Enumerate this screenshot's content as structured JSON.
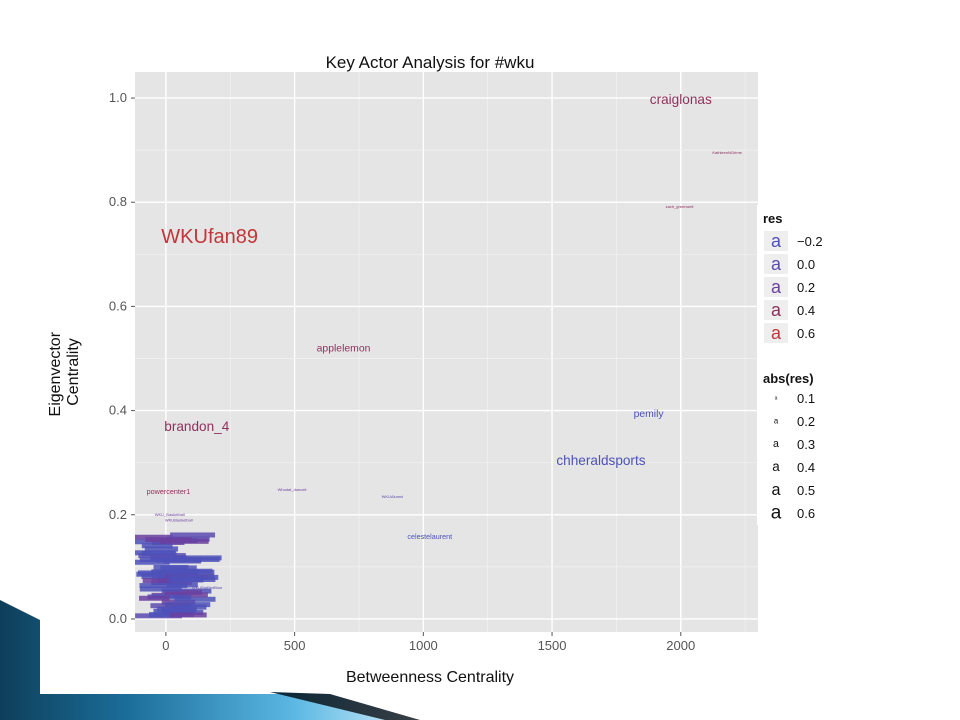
{
  "chart_data": {
    "type": "scatter",
    "title": "Key Actor Analysis for #wku",
    "xlabel": "Betweenness Centrality",
    "ylabel": "Eigenvector\nCentrality",
    "xlim": [
      -120,
      2300
    ],
    "ylim": [
      -0.025,
      1.05
    ],
    "xticks": [
      0,
      500,
      1000,
      1500,
      2000
    ],
    "yticks": [
      0.0,
      0.2,
      0.4,
      0.6,
      0.8,
      1.0
    ],
    "ytick_labels": [
      "0.0",
      "0.2",
      "0.4",
      "0.6",
      "0.8",
      "1.0"
    ],
    "grid": true,
    "points": [
      {
        "label": "craiglonas",
        "x": 2000,
        "y": 0.998,
        "res": 0.4,
        "abs_res": 0.4
      },
      {
        "label": "KathleenNGrime",
        "x": 2180,
        "y": 0.895,
        "res": 0.4,
        "abs_res": 0.1
      },
      {
        "label": "zach_greenwell",
        "x": 1995,
        "y": 0.792,
        "res": 0.4,
        "abs_res": 0.1
      },
      {
        "label": "WKUfan89",
        "x": 170,
        "y": 0.735,
        "res": 0.6,
        "abs_res": 0.6
      },
      {
        "label": "applelemon",
        "x": 690,
        "y": 0.52,
        "res": 0.4,
        "abs_res": 0.3
      },
      {
        "label": "brandon_4",
        "x": 120,
        "y": 0.37,
        "res": 0.4,
        "abs_res": 0.4
      },
      {
        "label": "pemily",
        "x": 1875,
        "y": 0.395,
        "res": -0.2,
        "abs_res": 0.3
      },
      {
        "label": "chheraldsports",
        "x": 1690,
        "y": 0.305,
        "res": -0.2,
        "abs_res": 0.4
      },
      {
        "label": "powercenter1",
        "x": 10,
        "y": 0.245,
        "res": 0.4,
        "abs_res": 0.2
      },
      {
        "label": "Whodat_dueceit",
        "x": 490,
        "y": 0.248,
        "res": 0.2,
        "abs_res": 0.1
      },
      {
        "label": "WKUAlumni",
        "x": 880,
        "y": 0.235,
        "res": 0.0,
        "abs_res": 0.1
      },
      {
        "label": "celestelaurent",
        "x": 1025,
        "y": 0.158,
        "res": -0.2,
        "abs_res": 0.2
      },
      {
        "label": "WKU_Basketball",
        "x": 15,
        "y": 0.2,
        "res": 0.2,
        "abs_res": 0.1
      },
      {
        "label": "WKUBasketball",
        "x": 50,
        "y": 0.19,
        "res": 0.2,
        "abs_res": 0.1
      },
      {
        "label": "WKUBigRedBlue",
        "x": 160,
        "y": 0.06,
        "res": 0.0,
        "abs_res": 0.1
      }
    ],
    "cluster_hint": {
      "x_range": [
        -95,
        80
      ],
      "y_range": [
        0.0,
        0.165
      ],
      "count": 60
    },
    "legends": [
      {
        "title": "res",
        "symbol": "a",
        "entries": [
          {
            "label": "−0.2",
            "color": "#4d51b8"
          },
          {
            "label": "0.0",
            "color": "#5a4bb0"
          },
          {
            "label": "0.2",
            "color": "#6b3fa0"
          },
          {
            "label": "0.4",
            "color": "#90305c"
          },
          {
            "label": "0.6",
            "color": "#c2353a"
          }
        ]
      },
      {
        "title": "abs(res)",
        "symbol": "a",
        "entries": [
          {
            "label": "0.1",
            "size": 0.1
          },
          {
            "label": "0.2",
            "size": 0.2
          },
          {
            "label": "0.3",
            "size": 0.3
          },
          {
            "label": "0.4",
            "size": 0.4
          },
          {
            "label": "0.5",
            "size": 0.5
          },
          {
            "label": "0.6",
            "size": 0.6
          }
        ]
      }
    ]
  },
  "colors": {
    "panel": "#e5e5e5",
    "grid_major": "#ffffff",
    "grid_minor": "#f2f2f2",
    "slide_accent_dark": "#0f4c6a",
    "slide_accent_light": "#3d9fcf"
  }
}
